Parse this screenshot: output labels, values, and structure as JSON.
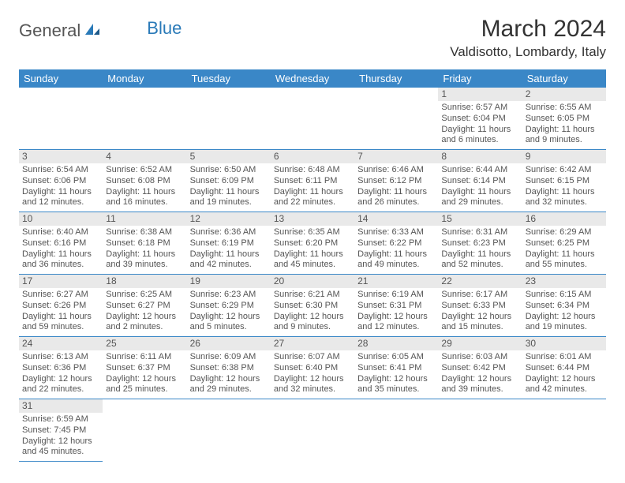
{
  "logo": {
    "part1": "General",
    "part2": "Blue"
  },
  "title": "March 2024",
  "location": "Valdisotto, Lombardy, Italy",
  "colors": {
    "header_bg": "#3a87c7",
    "header_text": "#ffffff",
    "daynum_bg": "#e9e9e9",
    "border": "#3a87c7",
    "logo_accent": "#2a7ab8"
  },
  "weekdays": [
    "Sunday",
    "Monday",
    "Tuesday",
    "Wednesday",
    "Thursday",
    "Friday",
    "Saturday"
  ],
  "weeks": [
    [
      null,
      null,
      null,
      null,
      null,
      {
        "n": "1",
        "sunrise": "Sunrise: 6:57 AM",
        "sunset": "Sunset: 6:04 PM",
        "daylight": "Daylight: 11 hours and 6 minutes."
      },
      {
        "n": "2",
        "sunrise": "Sunrise: 6:55 AM",
        "sunset": "Sunset: 6:05 PM",
        "daylight": "Daylight: 11 hours and 9 minutes."
      }
    ],
    [
      {
        "n": "3",
        "sunrise": "Sunrise: 6:54 AM",
        "sunset": "Sunset: 6:06 PM",
        "daylight": "Daylight: 11 hours and 12 minutes."
      },
      {
        "n": "4",
        "sunrise": "Sunrise: 6:52 AM",
        "sunset": "Sunset: 6:08 PM",
        "daylight": "Daylight: 11 hours and 16 minutes."
      },
      {
        "n": "5",
        "sunrise": "Sunrise: 6:50 AM",
        "sunset": "Sunset: 6:09 PM",
        "daylight": "Daylight: 11 hours and 19 minutes."
      },
      {
        "n": "6",
        "sunrise": "Sunrise: 6:48 AM",
        "sunset": "Sunset: 6:11 PM",
        "daylight": "Daylight: 11 hours and 22 minutes."
      },
      {
        "n": "7",
        "sunrise": "Sunrise: 6:46 AM",
        "sunset": "Sunset: 6:12 PM",
        "daylight": "Daylight: 11 hours and 26 minutes."
      },
      {
        "n": "8",
        "sunrise": "Sunrise: 6:44 AM",
        "sunset": "Sunset: 6:14 PM",
        "daylight": "Daylight: 11 hours and 29 minutes."
      },
      {
        "n": "9",
        "sunrise": "Sunrise: 6:42 AM",
        "sunset": "Sunset: 6:15 PM",
        "daylight": "Daylight: 11 hours and 32 minutes."
      }
    ],
    [
      {
        "n": "10",
        "sunrise": "Sunrise: 6:40 AM",
        "sunset": "Sunset: 6:16 PM",
        "daylight": "Daylight: 11 hours and 36 minutes."
      },
      {
        "n": "11",
        "sunrise": "Sunrise: 6:38 AM",
        "sunset": "Sunset: 6:18 PM",
        "daylight": "Daylight: 11 hours and 39 minutes."
      },
      {
        "n": "12",
        "sunrise": "Sunrise: 6:36 AM",
        "sunset": "Sunset: 6:19 PM",
        "daylight": "Daylight: 11 hours and 42 minutes."
      },
      {
        "n": "13",
        "sunrise": "Sunrise: 6:35 AM",
        "sunset": "Sunset: 6:20 PM",
        "daylight": "Daylight: 11 hours and 45 minutes."
      },
      {
        "n": "14",
        "sunrise": "Sunrise: 6:33 AM",
        "sunset": "Sunset: 6:22 PM",
        "daylight": "Daylight: 11 hours and 49 minutes."
      },
      {
        "n": "15",
        "sunrise": "Sunrise: 6:31 AM",
        "sunset": "Sunset: 6:23 PM",
        "daylight": "Daylight: 11 hours and 52 minutes."
      },
      {
        "n": "16",
        "sunrise": "Sunrise: 6:29 AM",
        "sunset": "Sunset: 6:25 PM",
        "daylight": "Daylight: 11 hours and 55 minutes."
      }
    ],
    [
      {
        "n": "17",
        "sunrise": "Sunrise: 6:27 AM",
        "sunset": "Sunset: 6:26 PM",
        "daylight": "Daylight: 11 hours and 59 minutes."
      },
      {
        "n": "18",
        "sunrise": "Sunrise: 6:25 AM",
        "sunset": "Sunset: 6:27 PM",
        "daylight": "Daylight: 12 hours and 2 minutes."
      },
      {
        "n": "19",
        "sunrise": "Sunrise: 6:23 AM",
        "sunset": "Sunset: 6:29 PM",
        "daylight": "Daylight: 12 hours and 5 minutes."
      },
      {
        "n": "20",
        "sunrise": "Sunrise: 6:21 AM",
        "sunset": "Sunset: 6:30 PM",
        "daylight": "Daylight: 12 hours and 9 minutes."
      },
      {
        "n": "21",
        "sunrise": "Sunrise: 6:19 AM",
        "sunset": "Sunset: 6:31 PM",
        "daylight": "Daylight: 12 hours and 12 minutes."
      },
      {
        "n": "22",
        "sunrise": "Sunrise: 6:17 AM",
        "sunset": "Sunset: 6:33 PM",
        "daylight": "Daylight: 12 hours and 15 minutes."
      },
      {
        "n": "23",
        "sunrise": "Sunrise: 6:15 AM",
        "sunset": "Sunset: 6:34 PM",
        "daylight": "Daylight: 12 hours and 19 minutes."
      }
    ],
    [
      {
        "n": "24",
        "sunrise": "Sunrise: 6:13 AM",
        "sunset": "Sunset: 6:36 PM",
        "daylight": "Daylight: 12 hours and 22 minutes."
      },
      {
        "n": "25",
        "sunrise": "Sunrise: 6:11 AM",
        "sunset": "Sunset: 6:37 PM",
        "daylight": "Daylight: 12 hours and 25 minutes."
      },
      {
        "n": "26",
        "sunrise": "Sunrise: 6:09 AM",
        "sunset": "Sunset: 6:38 PM",
        "daylight": "Daylight: 12 hours and 29 minutes."
      },
      {
        "n": "27",
        "sunrise": "Sunrise: 6:07 AM",
        "sunset": "Sunset: 6:40 PM",
        "daylight": "Daylight: 12 hours and 32 minutes."
      },
      {
        "n": "28",
        "sunrise": "Sunrise: 6:05 AM",
        "sunset": "Sunset: 6:41 PM",
        "daylight": "Daylight: 12 hours and 35 minutes."
      },
      {
        "n": "29",
        "sunrise": "Sunrise: 6:03 AM",
        "sunset": "Sunset: 6:42 PM",
        "daylight": "Daylight: 12 hours and 39 minutes."
      },
      {
        "n": "30",
        "sunrise": "Sunrise: 6:01 AM",
        "sunset": "Sunset: 6:44 PM",
        "daylight": "Daylight: 12 hours and 42 minutes."
      }
    ],
    [
      {
        "n": "31",
        "sunrise": "Sunrise: 6:59 AM",
        "sunset": "Sunset: 7:45 PM",
        "daylight": "Daylight: 12 hours and 45 minutes."
      },
      null,
      null,
      null,
      null,
      null,
      null
    ]
  ]
}
